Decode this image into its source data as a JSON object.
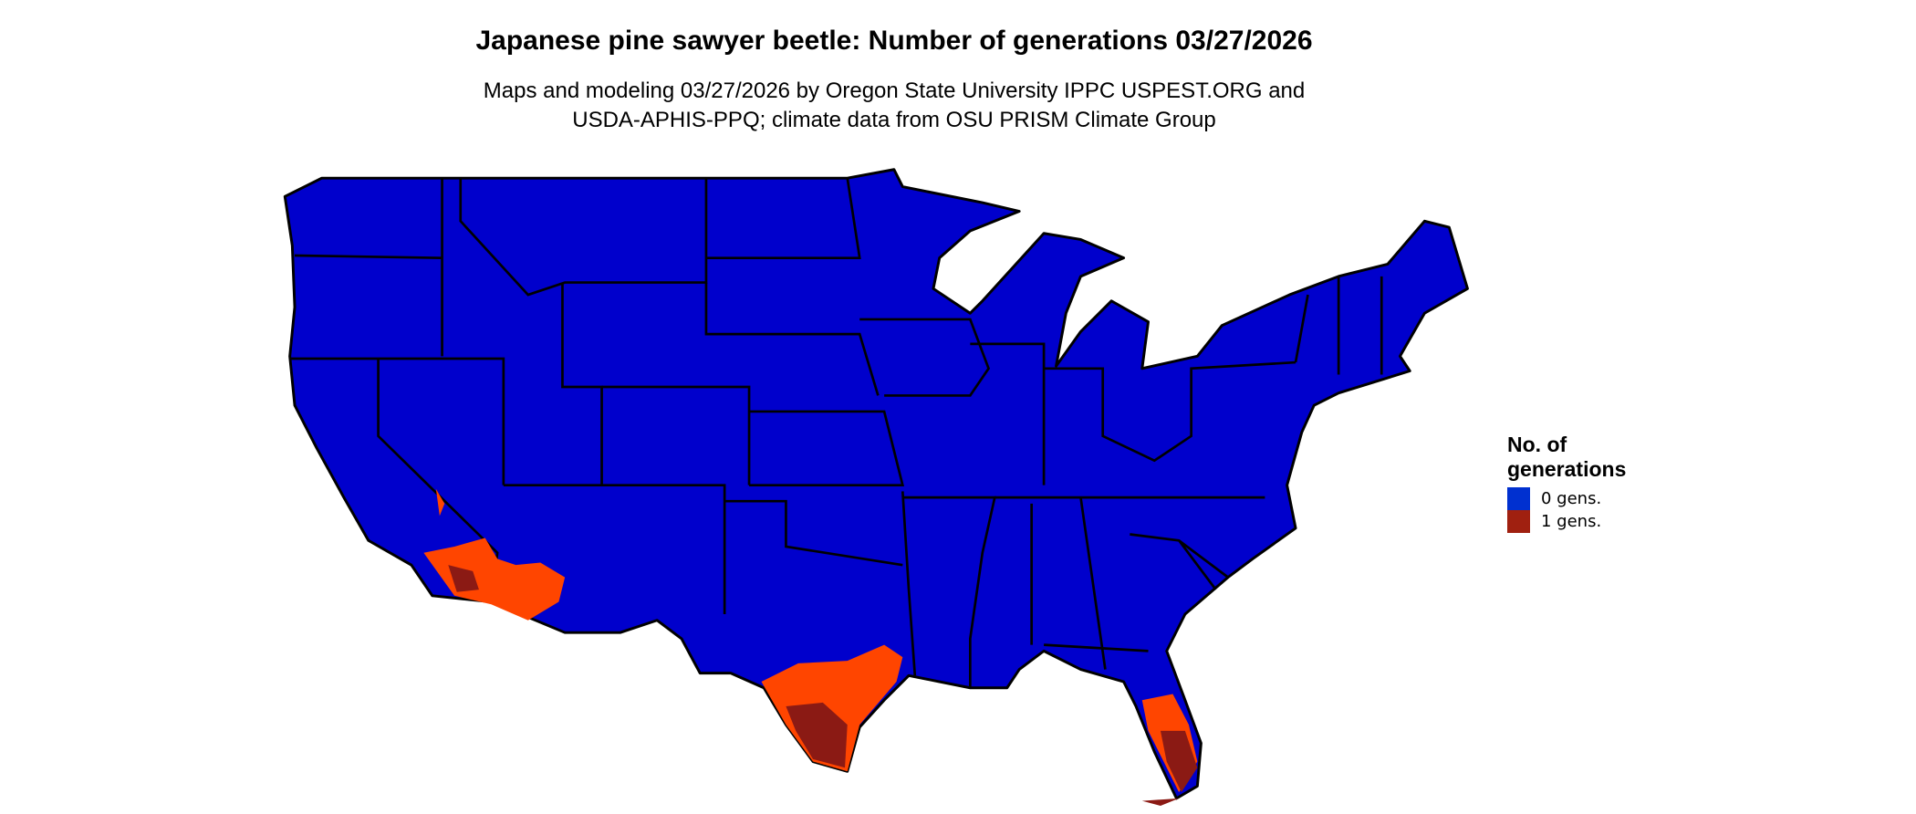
{
  "title": "Japanese pine sawyer beetle: Number of generations 03/27/2026",
  "subtitle_lines": [
    "Maps and modeling 03/27/2026 by Oregon State University IPPC USPEST.ORG and",
    "USDA-APHIS-PPQ; climate data from OSU PRISM Climate Group"
  ],
  "legend": {
    "title_lines": [
      "No. of",
      "generations"
    ],
    "items": [
      {
        "label": "0 gens.",
        "color": "#0030d0"
      },
      {
        "label": "1 gens.",
        "color": "#a02010"
      }
    ]
  },
  "map_colors": {
    "zero_gens": "#0000cc",
    "partial_gen": "#ff4500",
    "one_gen": "#8b1a14",
    "border": "#000000"
  }
}
